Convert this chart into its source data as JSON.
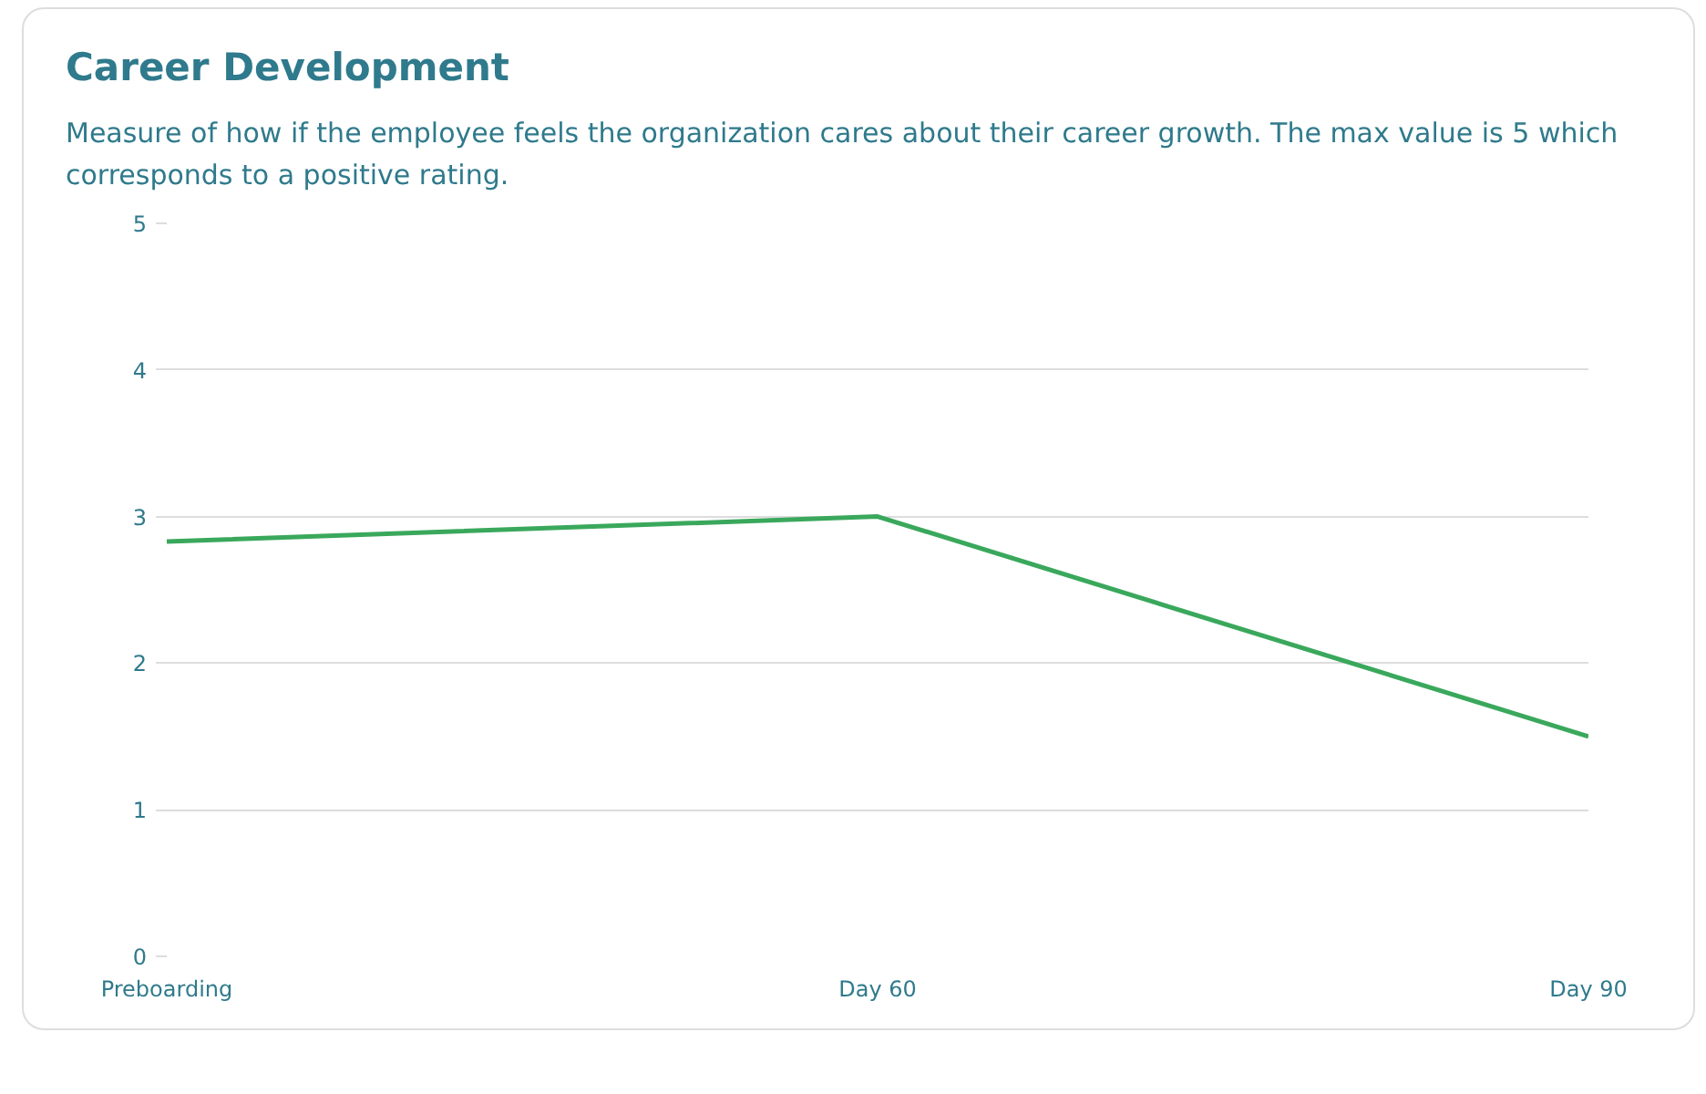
{
  "chart_data": {
    "type": "line",
    "title": "Career Development",
    "subtitle": "Measure of how if the employee feels the organization cares about their career growth. The max value is 5 which corresponds to a positive rating.",
    "categories": [
      "Preboarding",
      "Day 60",
      "Day 90"
    ],
    "series": [
      {
        "color": "#3aa85c",
        "values": [
          2.83,
          3.0,
          1.5
        ]
      }
    ],
    "ylim": [
      0,
      5
    ],
    "yticks": [
      0,
      1,
      2,
      3,
      4,
      5
    ],
    "grid": "y",
    "marker": "none",
    "line_style": "solid"
  }
}
